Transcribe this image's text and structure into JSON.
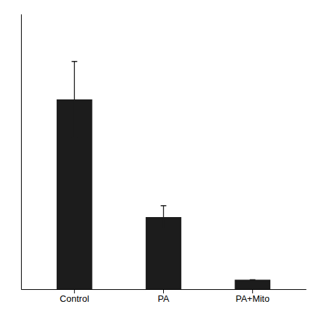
{
  "chart_data": {
    "type": "bar",
    "categories": [
      "Control",
      "PA",
      "PA+Mito"
    ],
    "values": [
      1.0,
      0.38,
      0.05
    ],
    "errors": [
      0.2,
      0.06,
      0.0
    ],
    "color": "#1c1c1c",
    "ylim": [
      0,
      1.45
    ],
    "tick_labels": "x"
  }
}
